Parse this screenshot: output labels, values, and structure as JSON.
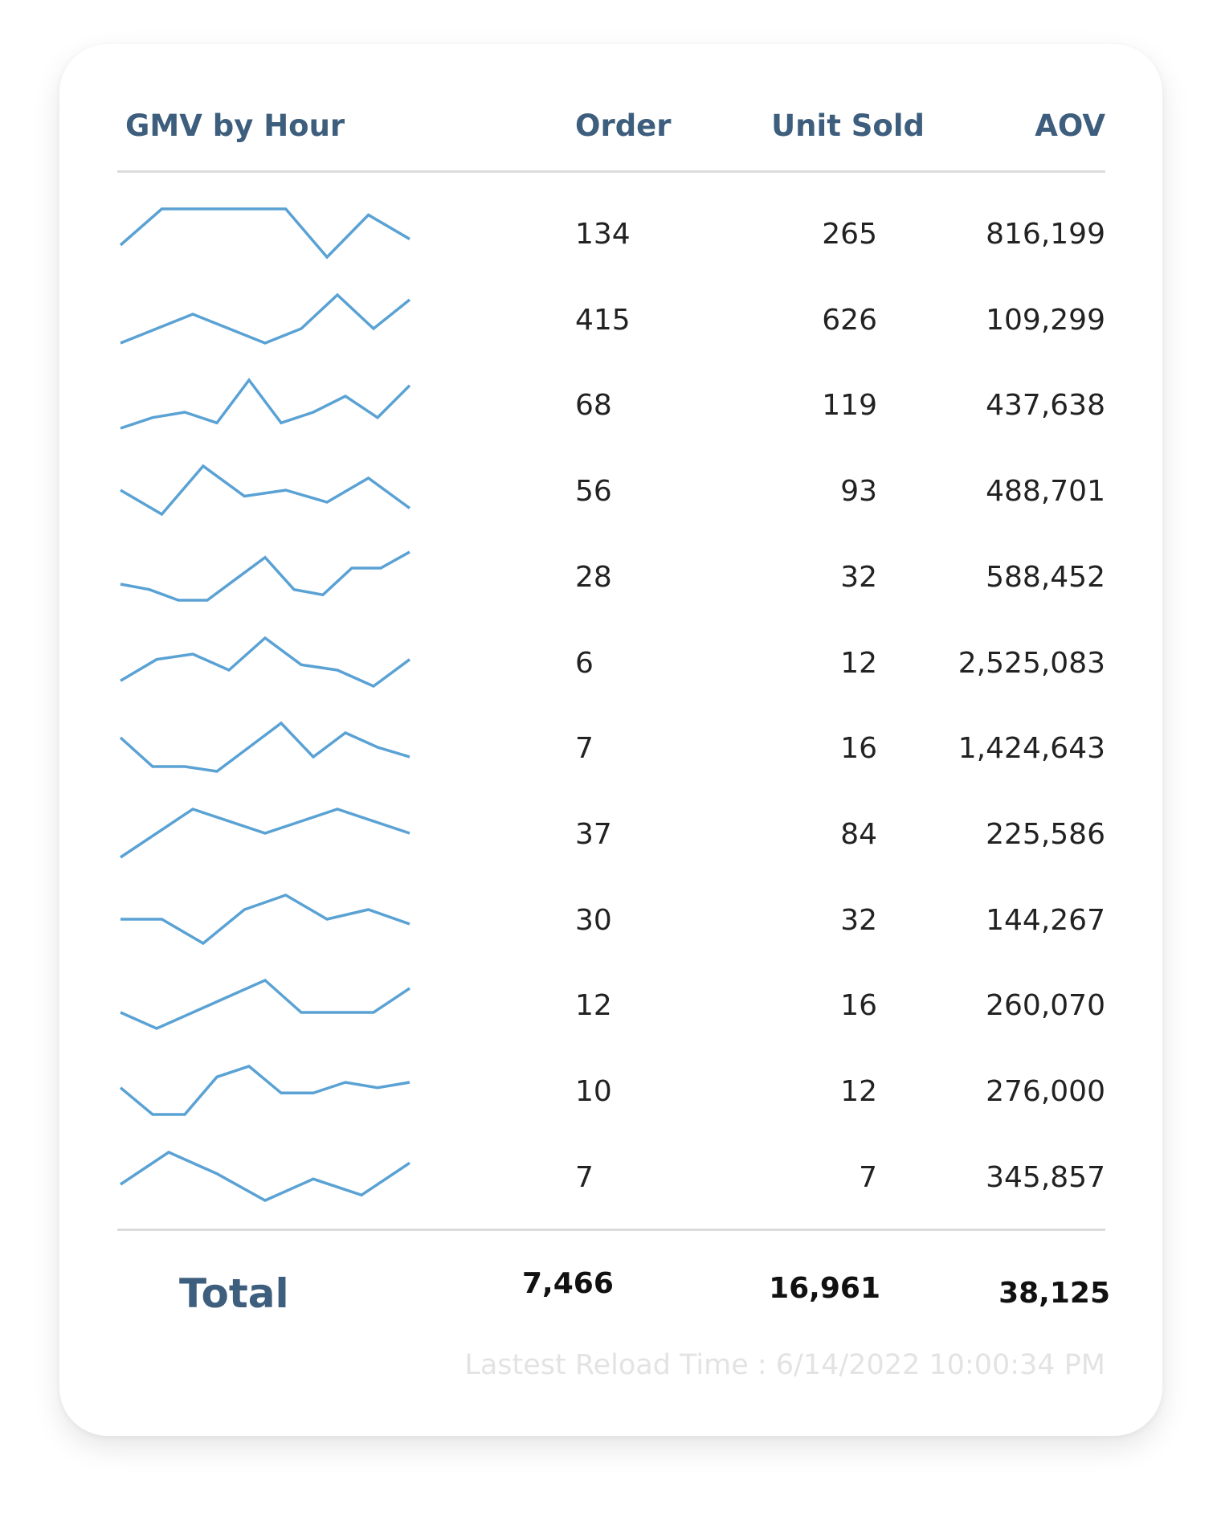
{
  "header": {
    "gmv": "GMV by Hour",
    "order": "Order",
    "unit_sold": "Unit Sold",
    "aov": "AOV"
  },
  "chart_data": {
    "type": "table",
    "sparkline_color": "#5aa2d4",
    "columns": [
      "GMV by Hour",
      "Order",
      "Unit Sold",
      "AOV"
    ],
    "rows": [
      {
        "order": "134",
        "unit_sold": "265",
        "aov": "816,199",
        "gmv_trend": [
          2,
          8,
          8,
          8,
          8,
          0,
          7,
          3
        ]
      },
      {
        "order": "415",
        "unit_sold": "626",
        "aov": "109,299",
        "gmv_trend": [
          0,
          3,
          6,
          3,
          0,
          3,
          10,
          3,
          9
        ]
      },
      {
        "order": "68",
        "unit_sold": "119",
        "aov": "437,638",
        "gmv_trend": [
          0,
          2,
          3,
          1,
          9,
          1,
          3,
          6,
          2,
          8
        ]
      },
      {
        "order": "56",
        "unit_sold": "93",
        "aov": "488,701",
        "gmv_trend": [
          5,
          1,
          9,
          4,
          5,
          3,
          7,
          2
        ]
      },
      {
        "order": "28",
        "unit_sold": "32",
        "aov": "588,452",
        "gmv_trend": [
          3,
          2,
          0,
          0,
          4,
          8,
          2,
          1,
          6,
          6,
          9
        ]
      },
      {
        "order": "6",
        "unit_sold": "12",
        "aov": "2,525,083",
        "gmv_trend": [
          1,
          5,
          6,
          3,
          9,
          4,
          3,
          0,
          5
        ]
      },
      {
        "order": "7",
        "unit_sold": "16",
        "aov": "1,424,643",
        "gmv_trend": [
          7,
          1,
          1,
          0,
          5,
          10,
          3,
          8,
          5,
          3
        ]
      },
      {
        "order": "37",
        "unit_sold": "84",
        "aov": "225,586",
        "gmv_trend": [
          0,
          10,
          5,
          10,
          5
        ]
      },
      {
        "order": "30",
        "unit_sold": "32",
        "aov": "144,267",
        "gmv_trend": [
          5,
          5,
          0,
          7,
          10,
          5,
          7,
          4
        ]
      },
      {
        "order": "12",
        "unit_sold": "16",
        "aov": "260,070",
        "gmv_trend": [
          3,
          1,
          3,
          5,
          7,
          3,
          3,
          3,
          6
        ]
      },
      {
        "order": "10",
        "unit_sold": "12",
        "aov": "276,000",
        "gmv_trend": [
          5,
          0,
          0,
          7,
          9,
          4,
          4,
          6,
          5,
          6
        ]
      },
      {
        "order": "7",
        "unit_sold": "7",
        "aov": "345,857",
        "gmv_trend": [
          3,
          9,
          5,
          0,
          4,
          1,
          7
        ]
      }
    ]
  },
  "total": {
    "label": "Total",
    "order": "7,466",
    "unit_sold": "16,961",
    "aov": "38,125"
  },
  "reload_text": "Lastest Reload Time : 6/14/2022 10:00:34 PM"
}
